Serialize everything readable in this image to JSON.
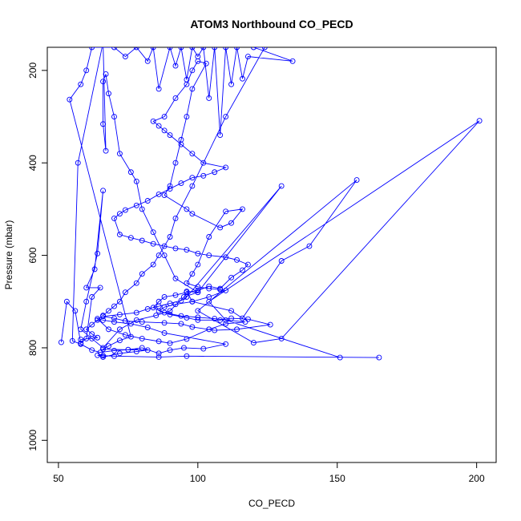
{
  "chart_data": {
    "type": "line",
    "title": "ATOM3 Northbound CO_PECD",
    "xlabel": "CO_PECD",
    "ylabel": "Pressure (mbar)",
    "xlim": [
      46,
      207
    ],
    "ylim": [
      1048,
      150
    ],
    "y_reversed": true,
    "grid": false,
    "legend": "none",
    "line_color": "#0000ff",
    "marker": "open-circle",
    "x_ticks": [
      {
        "value": 50,
        "label": "50"
      },
      {
        "value": 100,
        "label": "100"
      },
      {
        "value": 150,
        "label": "150"
      },
      {
        "value": 200,
        "label": "200"
      }
    ],
    "y_ticks": [
      {
        "value": 200,
        "label": "200"
      },
      {
        "value": 400,
        "label": "400"
      },
      {
        "value": 600,
        "label": "600"
      },
      {
        "value": 800,
        "label": "800"
      },
      {
        "value": 1000,
        "label": "1000"
      }
    ],
    "series": [
      {
        "points": [
          [
            51,
            788
          ],
          [
            53,
            700
          ],
          [
            56,
            720
          ],
          [
            58,
            790
          ],
          [
            60,
            780
          ],
          [
            62,
            690
          ],
          [
            65,
            670
          ],
          [
            60,
            670
          ],
          [
            63,
            630
          ],
          [
            66,
            460
          ],
          [
            64,
            596
          ],
          [
            60,
            700
          ],
          [
            58,
            760
          ],
          [
            62,
            780
          ],
          [
            66,
            800
          ],
          [
            72,
            760
          ],
          [
            78,
            740
          ],
          [
            85,
            730
          ],
          [
            90,
            720
          ],
          [
            95,
            690
          ],
          [
            100,
            680
          ],
          [
            92,
            650
          ],
          [
            88,
            600
          ],
          [
            84,
            550
          ],
          [
            80,
            500
          ],
          [
            78,
            440
          ],
          [
            76,
            420
          ],
          [
            72,
            380
          ],
          [
            70,
            300
          ],
          [
            68,
            250
          ],
          [
            67,
            208
          ],
          [
            66,
            224
          ],
          [
            66,
            316
          ],
          [
            67,
            374
          ],
          [
            66,
            140
          ],
          [
            57,
            400
          ],
          [
            55,
            785
          ],
          [
            58,
            792
          ],
          [
            62,
            805
          ],
          [
            65,
            810
          ],
          [
            70,
            806
          ],
          [
            75,
            804
          ],
          [
            80,
            800
          ],
          [
            86,
            812
          ],
          [
            90,
            805
          ],
          [
            95,
            800
          ],
          [
            102,
            802
          ],
          [
            110,
            792
          ],
          [
            88,
            768
          ],
          [
            82,
            756
          ],
          [
            76,
            748
          ],
          [
            70,
            744
          ],
          [
            66,
            740
          ],
          [
            64,
            737
          ],
          [
            68,
            760
          ],
          [
            74,
            772
          ],
          [
            80,
            780
          ],
          [
            86,
            786
          ],
          [
            90,
            790
          ],
          [
            96,
            781
          ],
          [
            104,
            760
          ],
          [
            110,
            748
          ],
          [
            117,
            744
          ],
          [
            106,
            737
          ],
          [
            100,
            734
          ],
          [
            94,
            731
          ],
          [
            88,
            724
          ],
          [
            84,
            713
          ],
          [
            86,
            700
          ],
          [
            88,
            690
          ],
          [
            92,
            686
          ],
          [
            96,
            680
          ],
          [
            100,
            676
          ],
          [
            104,
            667
          ],
          [
            108,
            672
          ],
          [
            112,
            648
          ],
          [
            116,
            632
          ],
          [
            118,
            620
          ],
          [
            114,
            610
          ],
          [
            110,
            604
          ],
          [
            104,
            600
          ],
          [
            100,
            596
          ],
          [
            96,
            588
          ],
          [
            92,
            585
          ],
          [
            88,
            580
          ],
          [
            84,
            575
          ],
          [
            80,
            568
          ],
          [
            76,
            562
          ],
          [
            72,
            555
          ],
          [
            70,
            520
          ],
          [
            72,
            510
          ],
          [
            74,
            502
          ],
          [
            78,
            492
          ],
          [
            82,
            482
          ],
          [
            86,
            468
          ],
          [
            90,
            456
          ],
          [
            94,
            444
          ],
          [
            98,
            432
          ],
          [
            102,
            428
          ],
          [
            106,
            420
          ],
          [
            110,
            410
          ],
          [
            102,
            400
          ],
          [
            98,
            380
          ],
          [
            94,
            360
          ],
          [
            90,
            340
          ],
          [
            88,
            330
          ],
          [
            86,
            320
          ],
          [
            84,
            310
          ],
          [
            88,
            300
          ],
          [
            92,
            260
          ],
          [
            96,
            230
          ],
          [
            98,
            200
          ],
          [
            100,
            180
          ],
          [
            103,
            185
          ],
          [
            98,
            240
          ],
          [
            96,
            300
          ],
          [
            94,
            350
          ],
          [
            92,
            400
          ],
          [
            90,
            450
          ],
          [
            88,
            470
          ],
          [
            96,
            500
          ],
          [
            98,
            510
          ],
          [
            108,
            540
          ],
          [
            112,
            530
          ],
          [
            116,
            500
          ],
          [
            110,
            505
          ],
          [
            104,
            560
          ],
          [
            100,
            620
          ],
          [
            98,
            640
          ],
          [
            96,
            660
          ],
          [
            100,
            668
          ],
          [
            104,
            672
          ],
          [
            108,
            674
          ],
          [
            110,
            676
          ],
          [
            104,
            690
          ],
          [
            98,
            700
          ],
          [
            92,
            706
          ],
          [
            88,
            712
          ],
          [
            86,
            720
          ],
          [
            90,
            728
          ],
          [
            96,
            735
          ],
          [
            100,
            740
          ],
          [
            108,
            740
          ],
          [
            112,
            736
          ],
          [
            118,
            738
          ],
          [
            126,
            750
          ],
          [
            114,
            760
          ],
          [
            106,
            762
          ],
          [
            98,
            755
          ],
          [
            94,
            748
          ],
          [
            88,
            746
          ],
          [
            80,
            744
          ],
          [
            74,
            742
          ],
          [
            70,
            736
          ],
          [
            66,
            732
          ],
          [
            72,
            728
          ],
          [
            78,
            724
          ],
          [
            82,
            716
          ],
          [
            86,
            710
          ],
          [
            90,
            704
          ],
          [
            94,
            698
          ],
          [
            96,
            690
          ],
          [
            130,
            450
          ],
          [
            100,
            680
          ],
          [
            96,
            678
          ],
          [
            98,
            700
          ],
          [
            112,
            720
          ],
          [
            116,
            736
          ],
          [
            130,
            612
          ],
          [
            140,
            580
          ],
          [
            157,
            437
          ],
          [
            100,
            720
          ],
          [
            120,
            789
          ],
          [
            130,
            780
          ],
          [
            201,
            309
          ],
          [
            104,
            700
          ],
          [
            110,
            740
          ],
          [
            151,
            821
          ],
          [
            165,
            821
          ],
          [
            96,
            818
          ],
          [
            86,
            820
          ],
          [
            70,
            818
          ],
          [
            66,
            817
          ],
          [
            64,
            816
          ],
          [
            66,
            820
          ],
          [
            72,
            812
          ],
          [
            78,
            808
          ],
          [
            82,
            805
          ],
          [
            66,
            803
          ],
          [
            68,
            796
          ],
          [
            72,
            784
          ],
          [
            76,
            776
          ],
          [
            54,
            263
          ],
          [
            58,
            230
          ],
          [
            60,
            200
          ],
          [
            62,
            150
          ],
          [
            70,
            150
          ],
          [
            74,
            170
          ],
          [
            78,
            150
          ],
          [
            82,
            180
          ],
          [
            84,
            150
          ],
          [
            86,
            240
          ],
          [
            90,
            150
          ],
          [
            92,
            190
          ],
          [
            94,
            150
          ],
          [
            96,
            220
          ],
          [
            98,
            150
          ],
          [
            100,
            170
          ],
          [
            102,
            150
          ],
          [
            104,
            260
          ],
          [
            106,
            150
          ],
          [
            108,
            340
          ],
          [
            110,
            150
          ],
          [
            112,
            230
          ],
          [
            114,
            150
          ],
          [
            116,
            218
          ],
          [
            118,
            170
          ],
          [
            134,
            180
          ],
          [
            120,
            150
          ],
          [
            124,
            150
          ],
          [
            110,
            300
          ],
          [
            98,
            450
          ],
          [
            92,
            520
          ],
          [
            90,
            560
          ],
          [
            86,
            600
          ],
          [
            84,
            620
          ],
          [
            80,
            640
          ],
          [
            78,
            660
          ],
          [
            74,
            680
          ],
          [
            72,
            700
          ],
          [
            70,
            710
          ],
          [
            68,
            720
          ],
          [
            66,
            730
          ],
          [
            64,
            740
          ],
          [
            62,
            750
          ],
          [
            60,
            760
          ],
          [
            62,
            770
          ],
          [
            64,
            778
          ],
          [
            58,
            782
          ]
        ]
      }
    ]
  }
}
